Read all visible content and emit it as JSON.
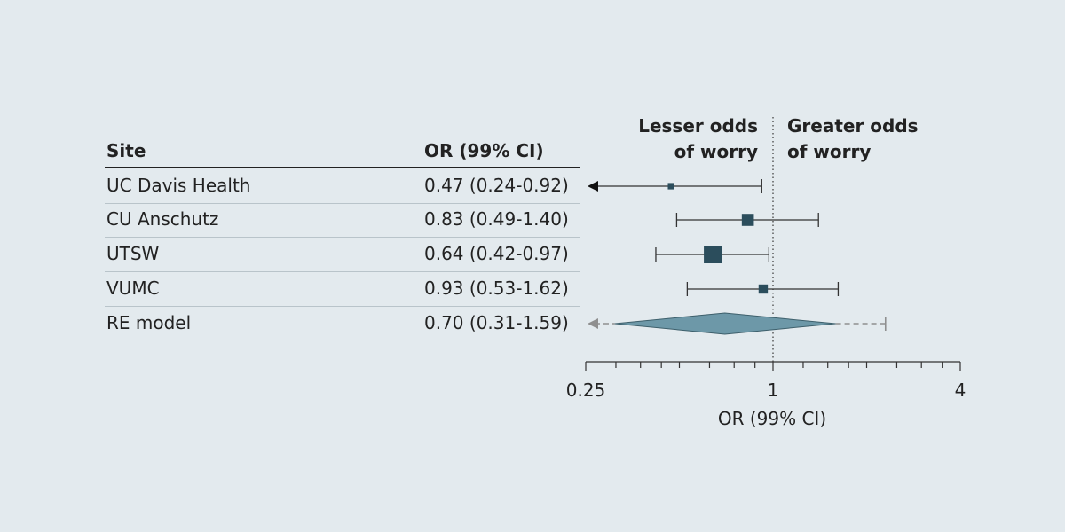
{
  "table": {
    "site_header": "Site",
    "or_header": "OR (99% CI)"
  },
  "direction_labels": {
    "lesser": [
      "Lesser odds",
      "of worry"
    ],
    "greater": [
      "Greater odds",
      "of worry"
    ]
  },
  "chart_data": {
    "type": "forest",
    "xlabel": "OR (99% CI)",
    "x_scale": "log",
    "xlim": [
      0.25,
      4
    ],
    "x_ticks": [
      0.25,
      1,
      4
    ],
    "x_tick_labels": [
      "0.25",
      "1",
      "4"
    ],
    "reference_line": 1,
    "colors": {
      "marker": "#2b4d5c",
      "diamond": "#6d98a8",
      "line": "#333333",
      "dashed": "#8f8f8f"
    },
    "studies": [
      {
        "site": "UC Davis Health",
        "or_text": "0.47 (0.24-0.92)",
        "or": 0.47,
        "lower": 0.24,
        "upper": 0.92,
        "weight": 1,
        "lower_truncated": true
      },
      {
        "site": "CU Anschutz",
        "or_text": "0.83 (0.49-1.40)",
        "or": 0.83,
        "lower": 0.49,
        "upper": 1.4,
        "weight": 3
      },
      {
        "site": "UTSW",
        "or_text": "0.64 (0.42-0.97)",
        "or": 0.64,
        "lower": 0.42,
        "upper": 0.97,
        "weight": 5
      },
      {
        "site": "VUMC",
        "or_text": "0.93 (0.53-1.62)",
        "or": 0.93,
        "lower": 0.53,
        "upper": 1.62,
        "weight": 2
      }
    ],
    "pooled": {
      "site": "RE model",
      "or_text": "0.70 (0.31-1.59)",
      "or": 0.7,
      "lower": 0.31,
      "upper": 1.59,
      "prediction_lower": 0.25,
      "prediction_upper": 2.3,
      "prediction_lower_truncated": true
    }
  }
}
